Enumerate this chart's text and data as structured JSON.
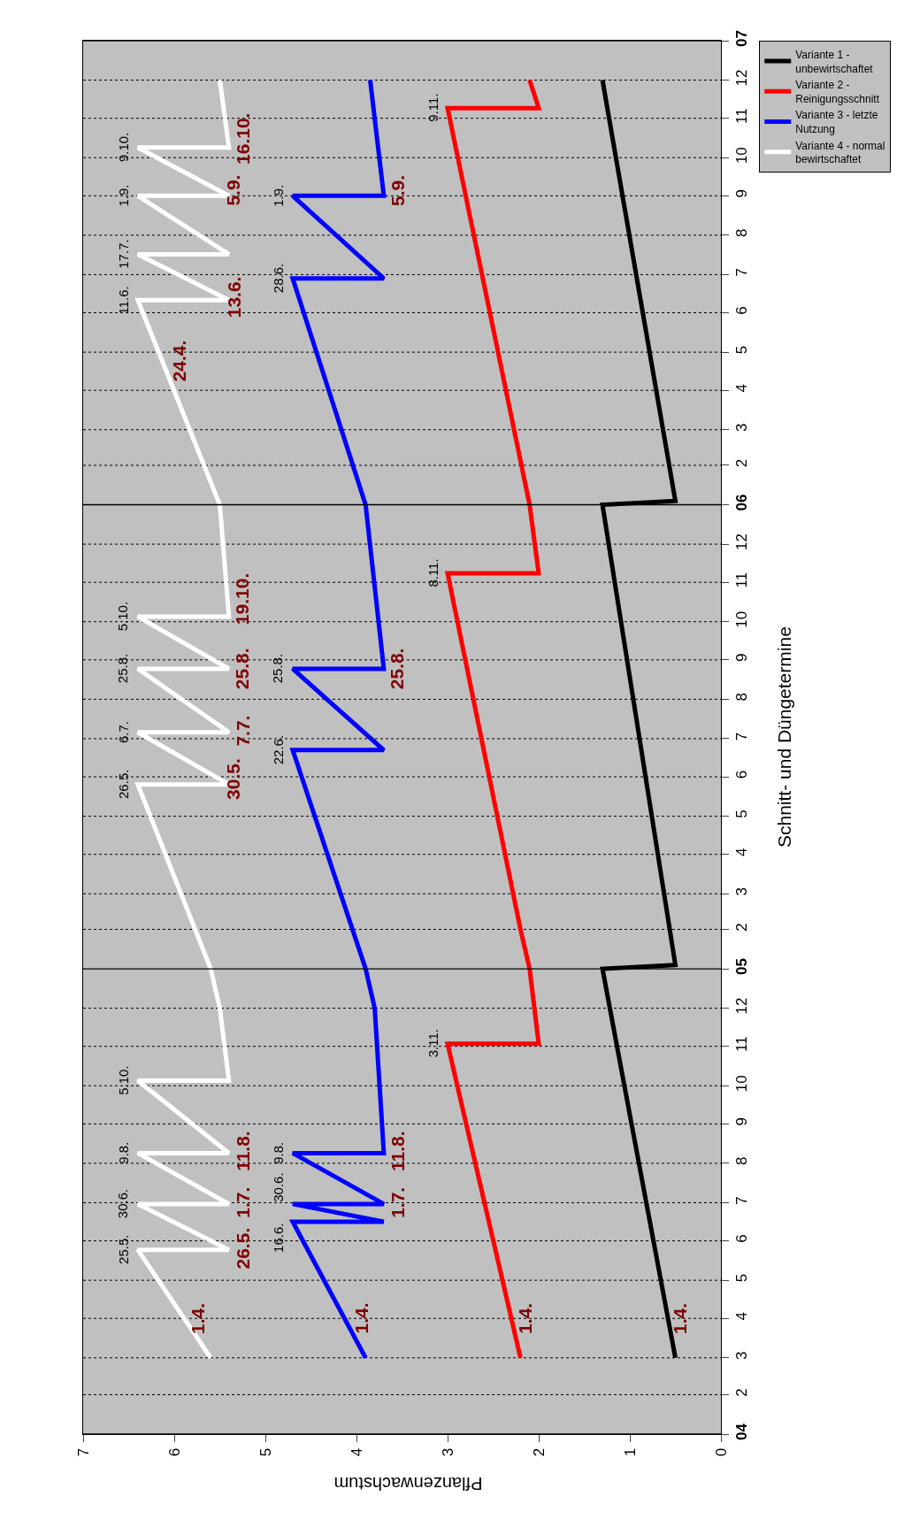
{
  "chart_data": {
    "type": "line",
    "orientation": "horizontal",
    "xlabel": "Pflanzenwachstum",
    "ylabel": "Schnitt- und Düngetermine",
    "xlim": [
      7,
      0
    ],
    "xticks": [
      7,
      6,
      5,
      4,
      3,
      2,
      1,
      0
    ],
    "ylim": [
      "2004-01-01",
      "2007-01-01"
    ],
    "yticks": [
      {
        "value": "2004-01-01",
        "label": "04"
      },
      {
        "value": "2004-02-01",
        "label": "2"
      },
      {
        "value": "2004-03-01",
        "label": "3"
      },
      {
        "value": "2004-04-01",
        "label": "4"
      },
      {
        "value": "2004-05-01",
        "label": "5"
      },
      {
        "value": "2004-06-01",
        "label": "6"
      },
      {
        "value": "2004-07-01",
        "label": "7"
      },
      {
        "value": "2004-08-01",
        "label": "8"
      },
      {
        "value": "2004-09-01",
        "label": "9"
      },
      {
        "value": "2004-10-01",
        "label": "10"
      },
      {
        "value": "2004-11-01",
        "label": "11"
      },
      {
        "value": "2004-12-01",
        "label": "12"
      },
      {
        "value": "2005-01-01",
        "label": "05"
      },
      {
        "value": "2005-02-01",
        "label": "2"
      },
      {
        "value": "2005-03-01",
        "label": "3"
      },
      {
        "value": "2005-04-01",
        "label": "4"
      },
      {
        "value": "2005-05-01",
        "label": "5"
      },
      {
        "value": "2005-06-01",
        "label": "6"
      },
      {
        "value": "2005-07-01",
        "label": "7"
      },
      {
        "value": "2005-08-01",
        "label": "8"
      },
      {
        "value": "2005-09-01",
        "label": "9"
      },
      {
        "value": "2005-10-01",
        "label": "10"
      },
      {
        "value": "2005-11-01",
        "label": "11"
      },
      {
        "value": "2005-12-01",
        "label": "12"
      },
      {
        "value": "2006-01-01",
        "label": "06"
      },
      {
        "value": "2006-02-01",
        "label": "2"
      },
      {
        "value": "2006-03-01",
        "label": "3"
      },
      {
        "value": "2006-04-01",
        "label": "4"
      },
      {
        "value": "2006-05-01",
        "label": "5"
      },
      {
        "value": "2006-06-01",
        "label": "6"
      },
      {
        "value": "2006-07-01",
        "label": "7"
      },
      {
        "value": "2006-08-01",
        "label": "8"
      },
      {
        "value": "2006-09-01",
        "label": "9"
      },
      {
        "value": "2006-10-01",
        "label": "10"
      },
      {
        "value": "2006-11-01",
        "label": "11"
      },
      {
        "value": "2006-12-01",
        "label": "12"
      },
      {
        "value": "2007-01-01",
        "label": "07"
      }
    ],
    "grid": "y",
    "legend": "top right",
    "line_style": "solid",
    "series": [
      {
        "name": "Variante 1 - unbewirtschaftet",
        "color": "#000000",
        "values": [
          0.5,
          1.3,
          0.5,
          1.3,
          0.5,
          1.3
        ],
        "x": [
          "2004-03-01",
          "2005-01-01",
          "2005-01-04",
          "2006-01-01",
          "2006-01-04",
          "2006-12-01"
        ]
      },
      {
        "name": "Variante 2 - Reinigungsschnitt",
        "color": "#ff0000",
        "values": [
          2.2,
          3.0,
          2.0,
          2.1,
          2.2,
          3.0,
          2.0,
          2.1,
          3.0,
          2.0,
          2.1
        ],
        "x": [
          "2004-03-01",
          "2004-11-03",
          "2004-11-03",
          "2005-01-01",
          "2005-02-01",
          "2005-11-08",
          "2005-11-08",
          "2006-01-01",
          "2006-11-09",
          "2006-11-09",
          "2006-12-01"
        ]
      },
      {
        "name": "Variante 3 - letzte Nutzung",
        "color": "#0000ff",
        "values": [
          3.9,
          4.7,
          3.7,
          4.7,
          3.7,
          4.7,
          3.7,
          3.8,
          3.9,
          4.7,
          3.7,
          4.7,
          3.7,
          3.9,
          4.7,
          3.7,
          4.7,
          3.7,
          3.85
        ],
        "x": [
          "2004-03-01",
          "2004-06-16",
          "2004-06-16",
          "2004-06-30",
          "2004-06-30",
          "2004-08-09",
          "2004-08-09",
          "2004-12-01",
          "2005-01-01",
          "2005-06-22",
          "2005-06-22",
          "2005-08-25",
          "2005-08-25",
          "2006-01-01",
          "2006-06-28",
          "2006-06-28",
          "2006-09-01",
          "2006-09-01",
          "2006-12-01"
        ]
      },
      {
        "name": "Variante 4 - normal bewirtschaftet",
        "color": "#ffffff",
        "values": [
          5.6,
          6.4,
          5.4,
          6.4,
          5.4,
          6.4,
          5.4,
          6.4,
          5.4,
          5.5,
          5.6,
          6.4,
          5.4,
          6.4,
          5.4,
          6.4,
          5.4,
          6.4,
          5.4,
          5.5,
          6.4,
          5.4,
          6.4,
          5.4,
          6.4,
          5.4,
          6.4,
          5.4,
          5.5
        ],
        "x": [
          "2004-03-01",
          "2004-05-25",
          "2004-05-25",
          "2004-06-30",
          "2004-06-30",
          "2004-08-09",
          "2004-08-09",
          "2004-10-05",
          "2004-10-05",
          "2004-12-01",
          "2005-01-01",
          "2005-05-26",
          "2005-05-26",
          "2005-07-06",
          "2005-07-06",
          "2005-08-25",
          "2005-08-25",
          "2005-10-05",
          "2005-10-05",
          "2006-01-01",
          "2006-06-11",
          "2006-06-11",
          "2006-07-17",
          "2006-07-17",
          "2006-09-01",
          "2006-09-01",
          "2006-10-09",
          "2006-10-09",
          "2006-12-01"
        ]
      }
    ],
    "annotations": [
      {
        "text": "25.5.",
        "x": 6.4,
        "y": "2004-05-25"
      },
      {
        "text": "30.6.",
        "x": 6.4,
        "y": "2004-06-30"
      },
      {
        "text": "9.8.",
        "x": 6.4,
        "y": "2004-08-09"
      },
      {
        "text": "5.10.",
        "x": 6.4,
        "y": "2004-10-05"
      },
      {
        "text": "26.5.",
        "x": 6.4,
        "y": "2005-05-26"
      },
      {
        "text": "6.7.",
        "x": 6.4,
        "y": "2005-07-06"
      },
      {
        "text": "25.8.",
        "x": 6.4,
        "y": "2005-08-25"
      },
      {
        "text": "5.10.",
        "x": 6.4,
        "y": "2005-10-05"
      },
      {
        "text": "11.6.",
        "x": 6.4,
        "y": "2006-06-11"
      },
      {
        "text": "17.7.",
        "x": 6.4,
        "y": "2006-07-17"
      },
      {
        "text": "1.9.",
        "x": 6.4,
        "y": "2006-09-01"
      },
      {
        "text": "9.10.",
        "x": 6.4,
        "y": "2006-10-09"
      },
      {
        "text": "16.6.",
        "x": 4.7,
        "y": "2004-06-16"
      },
      {
        "text": "30.6.",
        "x": 4.7,
        "y": "2004-06-30"
      },
      {
        "text": "9.8.",
        "x": 4.7,
        "y": "2004-08-09"
      },
      {
        "text": "22.6.",
        "x": 4.7,
        "y": "2005-06-22"
      },
      {
        "text": "25.8.",
        "x": 4.7,
        "y": "2005-08-25"
      },
      {
        "text": "28.6.",
        "x": 4.7,
        "y": "2006-06-28"
      },
      {
        "text": "1.9.",
        "x": 4.7,
        "y": "2006-09-01"
      },
      {
        "text": "3.11.",
        "x": 3.0,
        "y": "2004-11-03"
      },
      {
        "text": "8.11.",
        "x": 3.0,
        "y": "2005-11-08"
      },
      {
        "text": "9.11.",
        "x": 3.0,
        "y": "2006-11-09"
      },
      {
        "text": "1.4.",
        "x": 5.9,
        "y": "2004-04-01"
      },
      {
        "text": "26.5.",
        "x": 5.4,
        "y": "2004-05-26"
      },
      {
        "text": "1.7.",
        "x": 5.4,
        "y": "2004-07-01"
      },
      {
        "text": "11.8.",
        "x": 5.4,
        "y": "2004-08-11"
      },
      {
        "text": "30.5.",
        "x": 5.5,
        "y": "2005-05-30"
      },
      {
        "text": "7.7.",
        "x": 5.4,
        "y": "2005-07-07"
      },
      {
        "text": "25.8.",
        "x": 5.4,
        "y": "2005-08-25"
      },
      {
        "text": "19.10.",
        "x": 5.4,
        "y": "2005-10-19"
      },
      {
        "text": "24.4.",
        "x": 6.1,
        "y": "2006-04-24"
      },
      {
        "text": "13.6.",
        "x": 5.5,
        "y": "2006-06-13"
      },
      {
        "text": "5.9.",
        "x": 5.5,
        "y": "2006-09-05"
      },
      {
        "text": "16.10.",
        "x": 5.4,
        "y": "2006-10-16"
      },
      {
        "text": "1.4.",
        "x": 4.1,
        "y": "2004-04-01"
      },
      {
        "text": "1.7.",
        "x": 3.7,
        "y": "2004-07-01"
      },
      {
        "text": "11.8.",
        "x": 3.7,
        "y": "2004-08-11"
      },
      {
        "text": "25.8.",
        "x": 3.7,
        "y": "2005-08-25"
      },
      {
        "text": "5.9.",
        "x": 3.7,
        "y": "2006-09-05"
      },
      {
        "text": "1.4.",
        "x": 2.3,
        "y": "2004-04-01"
      },
      {
        "text": "1.4.",
        "x": 0.6,
        "y": "2004-04-01"
      }
    ]
  }
}
